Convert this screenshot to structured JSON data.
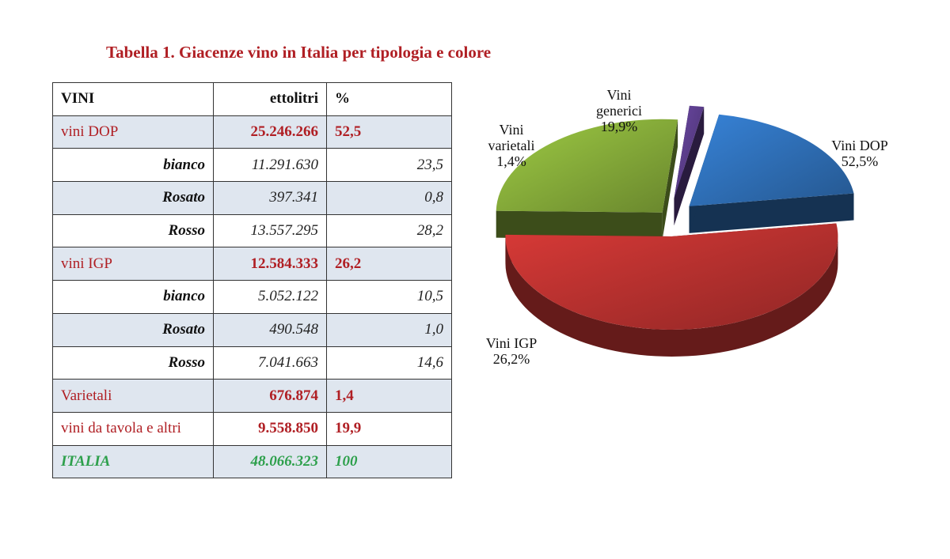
{
  "title": "Tabella 1. Giacenze vino in Italia per tipologia e colore",
  "table": {
    "headers": [
      "VINI",
      "ettolitri",
      "%"
    ],
    "rows": [
      {
        "label": "vini DOP",
        "ettolitri": "25.246.266",
        "pct": "52,5",
        "kind": "category"
      },
      {
        "label": "bianco",
        "ettolitri": "11.291.630",
        "pct": "23,5",
        "kind": "sub"
      },
      {
        "label": "Rosato",
        "ettolitri": "397.341",
        "pct": "0,8",
        "kind": "sub"
      },
      {
        "label": "Rosso",
        "ettolitri": "13.557.295",
        "pct": "28,2",
        "kind": "sub"
      },
      {
        "label": "vini IGP",
        "ettolitri": "12.584.333",
        "pct": "26,2",
        "kind": "category"
      },
      {
        "label": "bianco",
        "ettolitri": "5.052.122",
        "pct": "10,5",
        "kind": "sub"
      },
      {
        "label": "Rosato",
        "ettolitri": "490.548",
        "pct": "1,0",
        "kind": "sub"
      },
      {
        "label": "Rosso",
        "ettolitri": "7.041.663",
        "pct": "14,6",
        "kind": "sub"
      },
      {
        "label": "Varietali",
        "ettolitri": "676.874",
        "pct": "1,4",
        "kind": "category"
      },
      {
        "label": "vini da tavola e altri",
        "ettolitri": "9.558.850",
        "pct": "19,9",
        "kind": "category"
      },
      {
        "label": "ITALIA",
        "ettolitri": "48.066.323",
        "pct": "100",
        "kind": "total"
      }
    ]
  },
  "chart_data": {
    "type": "pie",
    "slices": [
      {
        "name": "Vini DOP",
        "label_lines": [
          "Vini DOP",
          "52,5%"
        ],
        "value": 52.5,
        "color": "#b8312f"
      },
      {
        "name": "Vini IGP",
        "label_lines": [
          "Vini IGP",
          "26,2%"
        ],
        "value": 26.2,
        "color": "#86ac3a"
      },
      {
        "name": "Vini varietali",
        "label_lines": [
          "Vini",
          "varietali",
          "1,4%"
        ],
        "value": 1.4,
        "color": "#5b3d8a"
      },
      {
        "name": "Vini generici",
        "label_lines": [
          "Vini",
          "generici",
          "19,9%"
        ],
        "value": 19.9,
        "color": "#2f6fb7"
      }
    ],
    "exploded": true,
    "style": "3d"
  }
}
